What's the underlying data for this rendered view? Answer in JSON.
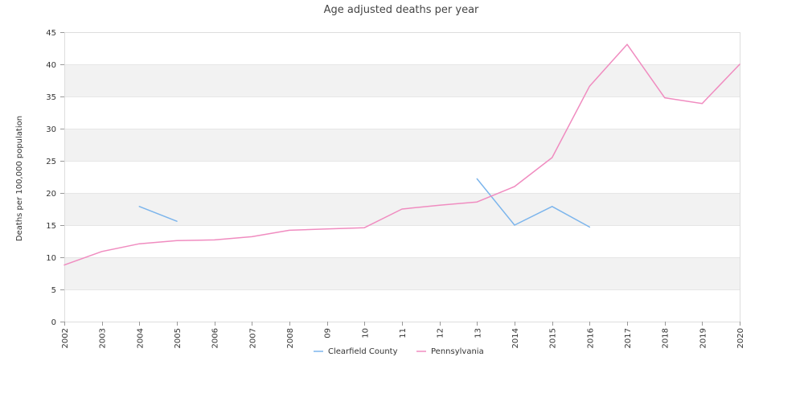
{
  "chart_data": {
    "type": "line",
    "title": "Age adjusted deaths per year",
    "xlabel": "",
    "ylabel": "Deaths per 100,000 population",
    "categories": [
      "2002",
      "2003",
      "2004",
      "2005",
      "2006",
      "2007",
      "2008",
      "09",
      "10",
      "11",
      "12",
      "13",
      "2014",
      "2015",
      "2016",
      "2017",
      "2018",
      "2019",
      "2020"
    ],
    "ylim": [
      0,
      45
    ],
    "yticks": [
      0,
      5,
      10,
      15,
      20,
      25,
      30,
      35,
      40,
      45
    ],
    "grid": "alternating horizontal bands",
    "legend_position": "bottom-center",
    "series": [
      {
        "name": "Clearfield County",
        "color": "#7cb5ec",
        "values": [
          null,
          null,
          17.9,
          15.6,
          null,
          null,
          null,
          null,
          null,
          null,
          null,
          22.2,
          15.0,
          17.9,
          14.7,
          null,
          null,
          null,
          null
        ]
      },
      {
        "name": "Pennsylvania",
        "color": "#f08cc0",
        "values": [
          8.8,
          10.9,
          12.1,
          12.6,
          12.7,
          13.2,
          14.2,
          14.4,
          14.6,
          17.5,
          18.1,
          18.6,
          21.0,
          25.5,
          36.6,
          43.1,
          34.8,
          33.9,
          40.0
        ]
      }
    ]
  }
}
